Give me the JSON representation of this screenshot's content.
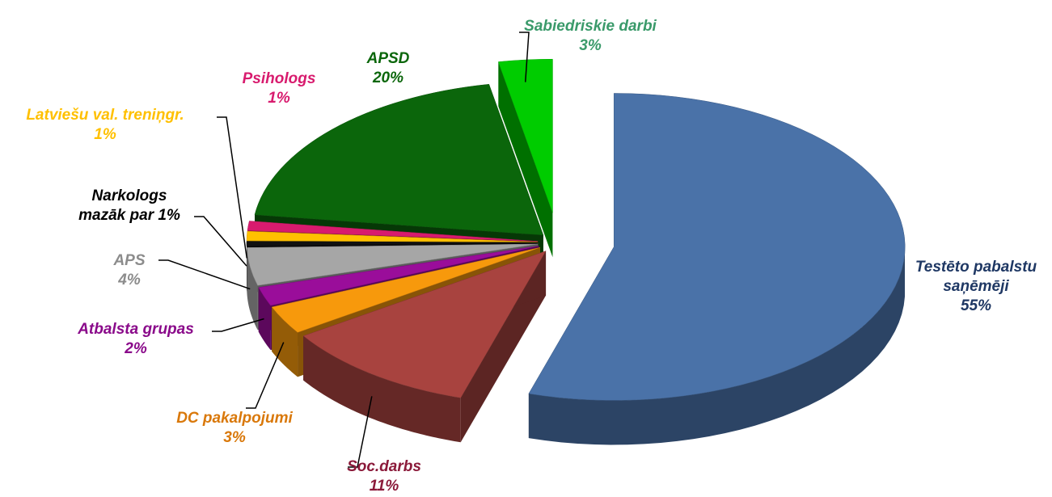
{
  "chart_data": {
    "type": "pie",
    "categories": [
      "Testēto pabalstu saņēmēji",
      "Soc.darbs",
      "DC pakalpojumi",
      "Atbalsta grupas",
      "APS",
      "Narkologs",
      "Latviešu val. treniņgr.",
      "Psihologs",
      "APSD",
      "Sabiedriskie darbi"
    ],
    "values": [
      55,
      11,
      3,
      2,
      4,
      0.5,
      1,
      1,
      20,
      3
    ],
    "value_labels": [
      "55%",
      "11%",
      "3%",
      "2%",
      "4%",
      "mazāk par 1%",
      "1%",
      "1%",
      "20%",
      "3%"
    ],
    "colors": [
      "#4a72a8",
      "#a8433f",
      "#f7990c",
      "#9a0d9a",
      "#a6a6a6",
      "#111111",
      "#ffc000",
      "#d81b6e",
      "#0b660b",
      "#00cc00"
    ],
    "label_colors": [
      "#1f3864",
      "#8b1a3a",
      "#d9780a",
      "#8a0a8a",
      "#8c8c8c",
      "#000000",
      "#ffc000",
      "#d81b6e",
      "#0b660b",
      "#3a9a6a"
    ]
  }
}
